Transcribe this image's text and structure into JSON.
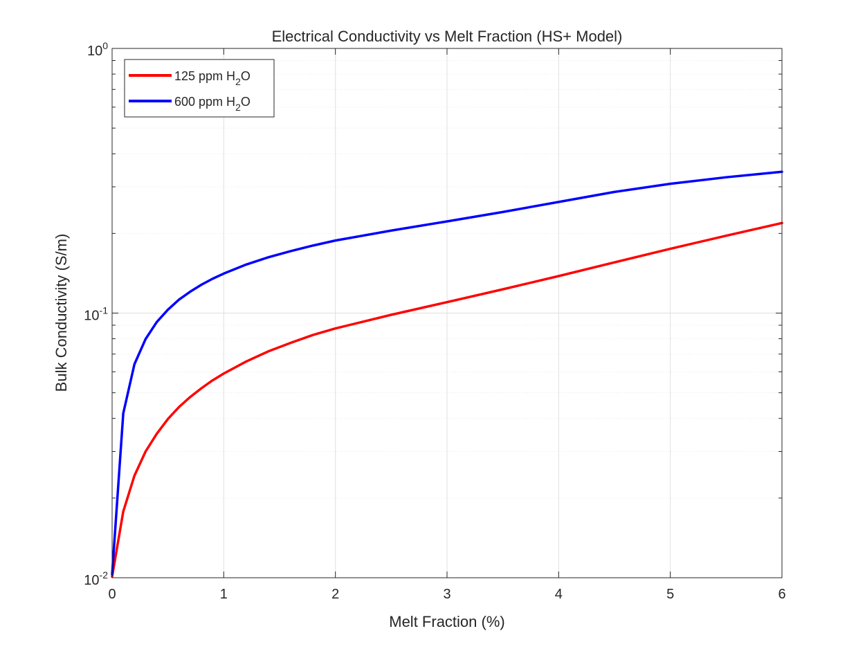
{
  "chart_data": {
    "type": "line",
    "title": "Electrical Conductivity vs Melt Fraction (HS+ Model)",
    "xlabel": "Melt Fraction (%)",
    "ylabel": "Bulk Conductivity (S/m)",
    "xlim": [
      0,
      6
    ],
    "ylim": [
      0.01,
      1
    ],
    "yscale": "log",
    "grid": true,
    "legend_position": "top-left",
    "x_ticks": [
      0,
      1,
      2,
      3,
      4,
      5,
      6
    ],
    "x_tick_labels": [
      "0",
      "1",
      "2",
      "3",
      "4",
      "5",
      "6"
    ],
    "y_ticks": [
      0.01,
      0.1,
      1
    ],
    "y_tick_labels": [
      {
        "base": "10",
        "exp": "-2"
      },
      {
        "base": "10",
        "exp": "-1"
      },
      {
        "base": "10",
        "exp": "0"
      }
    ],
    "series": [
      {
        "name": "125 ppm H2O",
        "legend_parts": {
          "pre": "125 ppm H",
          "sub": "2",
          "post": "O"
        },
        "color": "#ff0000",
        "x": [
          0,
          0.1,
          0.2,
          0.3,
          0.4,
          0.5,
          0.6,
          0.7,
          0.8,
          0.9,
          1.0,
          1.2,
          1.4,
          1.6,
          1.8,
          2.0,
          2.5,
          3.0,
          3.5,
          4.0,
          4.5,
          5.0,
          5.5,
          6.0
        ],
        "values": [
          0.0101,
          0.0178,
          0.0243,
          0.03,
          0.035,
          0.0398,
          0.0442,
          0.0482,
          0.052,
          0.0557,
          0.0591,
          0.0656,
          0.0717,
          0.0772,
          0.0827,
          0.0875,
          0.0985,
          0.11,
          0.123,
          0.138,
          0.1555,
          0.175,
          0.196,
          0.219
        ]
      },
      {
        "name": "600 ppm H2O",
        "legend_parts": {
          "pre": "600 ppm H",
          "sub": "2",
          "post": "O"
        },
        "color": "#0000ff",
        "x": [
          0,
          0.1,
          0.2,
          0.3,
          0.4,
          0.5,
          0.6,
          0.7,
          0.8,
          0.9,
          1.0,
          1.2,
          1.4,
          1.6,
          1.8,
          2.0,
          2.5,
          3.0,
          3.5,
          4.0,
          4.5,
          5.0,
          5.5,
          6.0
        ],
        "values": [
          0.0103,
          0.0418,
          0.0641,
          0.0798,
          0.0925,
          0.103,
          0.1125,
          0.1205,
          0.128,
          0.1348,
          0.141,
          0.1525,
          0.1625,
          0.1715,
          0.18,
          0.188,
          0.205,
          0.222,
          0.241,
          0.263,
          0.287,
          0.308,
          0.326,
          0.342
        ]
      }
    ]
  }
}
